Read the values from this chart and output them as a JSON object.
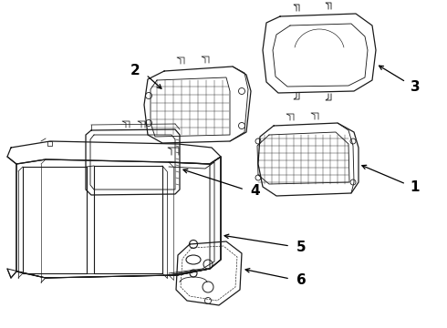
{
  "background_color": "#ffffff",
  "line_color": "#1a1a1a",
  "lw": 0.9,
  "fig_w": 4.9,
  "fig_h": 3.6,
  "dpi": 100
}
